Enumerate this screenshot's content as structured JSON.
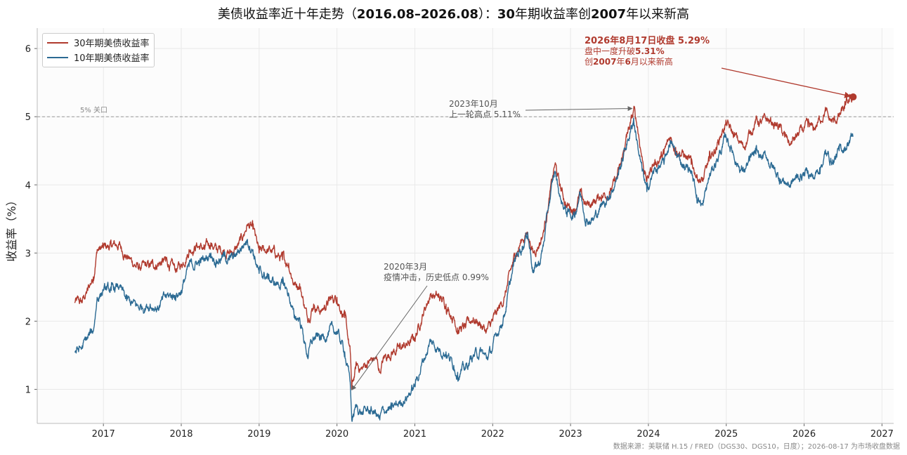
{
  "title": "美债收益率近十年走势（2016.08–2026.08）：30年期收益率创2007年以来新高",
  "source": "数据来源：美联储 H.15 / FRED（DGS30、DGS10，日度）；2026-08-17 为市场收盘数据",
  "colors": {
    "s30": "#b03a2e",
    "s10": "#2b6a93",
    "grid": "#e9e9e9",
    "axis": "#bbbbbb",
    "ref": "#9a9a9a",
    "ann_gray": "#666666",
    "ann_red": "#b03a2e"
  },
  "chart_data": {
    "type": "line",
    "ylabel": "收益率（%）",
    "xlabel": "",
    "xlim": [
      2016.15,
      2027.15
    ],
    "ylim": [
      0.5,
      6.3
    ],
    "xticks": [
      2017,
      2018,
      2019,
      2020,
      2021,
      2022,
      2023,
      2024,
      2025,
      2026,
      2027
    ],
    "yticks": [
      1,
      2,
      3,
      4,
      5,
      6
    ],
    "grid": true,
    "legend_position": "top-left",
    "reference_line": {
      "y": 5.0,
      "label": "5% 关口"
    },
    "series": [
      {
        "name": "30年期美债收益率",
        "points": [
          [
            2016.63,
            2.28
          ],
          [
            2016.72,
            2.27
          ],
          [
            2016.8,
            2.45
          ],
          [
            2016.87,
            2.65
          ],
          [
            2016.92,
            3.05
          ],
          [
            2017.0,
            3.07
          ],
          [
            2017.1,
            3.1
          ],
          [
            2017.2,
            3.12
          ],
          [
            2017.3,
            2.95
          ],
          [
            2017.45,
            2.78
          ],
          [
            2017.6,
            2.8
          ],
          [
            2017.7,
            2.85
          ],
          [
            2017.8,
            2.88
          ],
          [
            2017.92,
            2.75
          ],
          [
            2018.0,
            2.82
          ],
          [
            2018.1,
            3.05
          ],
          [
            2018.2,
            3.12
          ],
          [
            2018.3,
            3.05
          ],
          [
            2018.38,
            3.15
          ],
          [
            2018.45,
            3.05
          ],
          [
            2018.55,
            3.05
          ],
          [
            2018.62,
            3.0
          ],
          [
            2018.7,
            3.05
          ],
          [
            2018.78,
            3.2
          ],
          [
            2018.85,
            3.42
          ],
          [
            2018.92,
            3.35
          ],
          [
            2019.0,
            3.0
          ],
          [
            2019.1,
            3.05
          ],
          [
            2019.2,
            3.0
          ],
          [
            2019.3,
            2.9
          ],
          [
            2019.38,
            2.85
          ],
          [
            2019.45,
            2.55
          ],
          [
            2019.52,
            2.55
          ],
          [
            2019.62,
            2.05
          ],
          [
            2019.7,
            2.25
          ],
          [
            2019.8,
            2.15
          ],
          [
            2019.9,
            2.3
          ],
          [
            2020.0,
            2.35
          ],
          [
            2020.1,
            2.05
          ],
          [
            2020.17,
            1.55
          ],
          [
            2020.19,
            1.0
          ],
          [
            2020.25,
            1.35
          ],
          [
            2020.32,
            1.3
          ],
          [
            2020.4,
            1.4
          ],
          [
            2020.5,
            1.45
          ],
          [
            2020.55,
            1.25
          ],
          [
            2020.6,
            1.45
          ],
          [
            2020.7,
            1.55
          ],
          [
            2020.8,
            1.6
          ],
          [
            2020.9,
            1.65
          ],
          [
            2021.0,
            1.75
          ],
          [
            2021.1,
            2.1
          ],
          [
            2021.2,
            2.4
          ],
          [
            2021.3,
            2.35
          ],
          [
            2021.4,
            2.25
          ],
          [
            2021.5,
            2.05
          ],
          [
            2021.55,
            1.9
          ],
          [
            2021.65,
            1.9
          ],
          [
            2021.75,
            2.05
          ],
          [
            2021.85,
            1.95
          ],
          [
            2021.92,
            1.85
          ],
          [
            2022.0,
            2.0
          ],
          [
            2022.05,
            2.1
          ],
          [
            2022.15,
            2.35
          ],
          [
            2022.25,
            2.8
          ],
          [
            2022.3,
            3.0
          ],
          [
            2022.38,
            3.2
          ],
          [
            2022.45,
            3.3
          ],
          [
            2022.52,
            3.0
          ],
          [
            2022.6,
            3.15
          ],
          [
            2022.65,
            3.3
          ],
          [
            2022.72,
            3.75
          ],
          [
            2022.8,
            4.3
          ],
          [
            2022.87,
            3.95
          ],
          [
            2022.95,
            3.7
          ],
          [
            2023.05,
            3.65
          ],
          [
            2023.12,
            3.85
          ],
          [
            2023.2,
            3.7
          ],
          [
            2023.3,
            3.75
          ],
          [
            2023.4,
            3.85
          ],
          [
            2023.5,
            3.9
          ],
          [
            2023.58,
            4.05
          ],
          [
            2023.65,
            4.3
          ],
          [
            2023.72,
            4.7
          ],
          [
            2023.8,
            5.0
          ],
          [
            2023.81,
            5.11
          ],
          [
            2023.86,
            4.85
          ],
          [
            2023.92,
            4.4
          ],
          [
            2023.98,
            4.05
          ],
          [
            2024.05,
            4.3
          ],
          [
            2024.12,
            4.35
          ],
          [
            2024.2,
            4.45
          ],
          [
            2024.28,
            4.7
          ],
          [
            2024.35,
            4.55
          ],
          [
            2024.45,
            4.45
          ],
          [
            2024.55,
            4.3
          ],
          [
            2024.62,
            4.15
          ],
          [
            2024.7,
            4.05
          ],
          [
            2024.78,
            4.35
          ],
          [
            2024.87,
            4.55
          ],
          [
            2024.95,
            4.8
          ],
          [
            2025.0,
            4.9
          ],
          [
            2025.08,
            4.75
          ],
          [
            2025.15,
            4.65
          ],
          [
            2025.22,
            4.55
          ],
          [
            2025.3,
            4.75
          ],
          [
            2025.38,
            4.95
          ],
          [
            2025.45,
            4.9
          ],
          [
            2025.52,
            4.95
          ],
          [
            2025.6,
            4.9
          ],
          [
            2025.68,
            4.85
          ],
          [
            2025.75,
            4.7
          ],
          [
            2025.82,
            4.6
          ],
          [
            2025.9,
            4.7
          ],
          [
            2025.98,
            4.8
          ],
          [
            2026.05,
            4.85
          ],
          [
            2026.12,
            4.8
          ],
          [
            2026.2,
            4.95
          ],
          [
            2026.27,
            5.1
          ],
          [
            2026.32,
            4.95
          ],
          [
            2026.38,
            4.92
          ],
          [
            2026.45,
            5.0
          ],
          [
            2026.52,
            5.12
          ],
          [
            2026.58,
            5.22
          ],
          [
            2026.63,
            5.29
          ]
        ]
      },
      {
        "name": "10年期美债收益率",
        "points": [
          [
            2016.63,
            1.55
          ],
          [
            2016.72,
            1.6
          ],
          [
            2016.8,
            1.75
          ],
          [
            2016.87,
            1.85
          ],
          [
            2016.92,
            2.35
          ],
          [
            2017.0,
            2.45
          ],
          [
            2017.1,
            2.45
          ],
          [
            2017.2,
            2.5
          ],
          [
            2017.3,
            2.3
          ],
          [
            2017.45,
            2.2
          ],
          [
            2017.6,
            2.25
          ],
          [
            2017.7,
            2.2
          ],
          [
            2017.8,
            2.35
          ],
          [
            2017.92,
            2.38
          ],
          [
            2018.0,
            2.45
          ],
          [
            2018.1,
            2.8
          ],
          [
            2018.2,
            2.85
          ],
          [
            2018.3,
            2.9
          ],
          [
            2018.38,
            3.0
          ],
          [
            2018.45,
            2.9
          ],
          [
            2018.55,
            2.95
          ],
          [
            2018.62,
            2.9
          ],
          [
            2018.7,
            2.95
          ],
          [
            2018.78,
            3.1
          ],
          [
            2018.85,
            3.2
          ],
          [
            2018.92,
            3.05
          ],
          [
            2019.0,
            2.7
          ],
          [
            2019.1,
            2.65
          ],
          [
            2019.2,
            2.55
          ],
          [
            2019.3,
            2.55
          ],
          [
            2019.38,
            2.4
          ],
          [
            2019.45,
            2.05
          ],
          [
            2019.52,
            2.05
          ],
          [
            2019.62,
            1.5
          ],
          [
            2019.7,
            1.75
          ],
          [
            2019.8,
            1.75
          ],
          [
            2019.9,
            1.85
          ],
          [
            2020.0,
            1.85
          ],
          [
            2020.1,
            1.55
          ],
          [
            2020.17,
            1.1
          ],
          [
            2020.19,
            0.55
          ],
          [
            2020.25,
            0.75
          ],
          [
            2020.32,
            0.65
          ],
          [
            2020.4,
            0.7
          ],
          [
            2020.5,
            0.65
          ],
          [
            2020.55,
            0.55
          ],
          [
            2020.6,
            0.7
          ],
          [
            2020.7,
            0.7
          ],
          [
            2020.8,
            0.8
          ],
          [
            2020.9,
            0.9
          ],
          [
            2021.0,
            1.05
          ],
          [
            2021.1,
            1.4
          ],
          [
            2021.2,
            1.7
          ],
          [
            2021.3,
            1.6
          ],
          [
            2021.4,
            1.55
          ],
          [
            2021.5,
            1.35
          ],
          [
            2021.55,
            1.25
          ],
          [
            2021.65,
            1.3
          ],
          [
            2021.75,
            1.5
          ],
          [
            2021.85,
            1.55
          ],
          [
            2021.92,
            1.45
          ],
          [
            2022.0,
            1.6
          ],
          [
            2022.05,
            1.8
          ],
          [
            2022.15,
            2.1
          ],
          [
            2022.25,
            2.7
          ],
          [
            2022.3,
            2.95
          ],
          [
            2022.38,
            3.1
          ],
          [
            2022.45,
            3.3
          ],
          [
            2022.52,
            2.75
          ],
          [
            2022.6,
            2.85
          ],
          [
            2022.65,
            3.1
          ],
          [
            2022.72,
            3.7
          ],
          [
            2022.8,
            4.2
          ],
          [
            2022.87,
            3.8
          ],
          [
            2022.95,
            3.6
          ],
          [
            2023.05,
            3.55
          ],
          [
            2023.12,
            3.9
          ],
          [
            2023.2,
            3.5
          ],
          [
            2023.3,
            3.5
          ],
          [
            2023.4,
            3.7
          ],
          [
            2023.5,
            3.85
          ],
          [
            2023.58,
            4.05
          ],
          [
            2023.65,
            4.3
          ],
          [
            2023.72,
            4.6
          ],
          [
            2023.8,
            4.9
          ],
          [
            2023.81,
            4.98
          ],
          [
            2023.86,
            4.6
          ],
          [
            2023.92,
            4.2
          ],
          [
            2023.98,
            3.9
          ],
          [
            2024.05,
            4.15
          ],
          [
            2024.12,
            4.25
          ],
          [
            2024.2,
            4.3
          ],
          [
            2024.28,
            4.65
          ],
          [
            2024.35,
            4.45
          ],
          [
            2024.45,
            4.3
          ],
          [
            2024.55,
            4.2
          ],
          [
            2024.62,
            3.85
          ],
          [
            2024.7,
            3.7
          ],
          [
            2024.78,
            4.1
          ],
          [
            2024.87,
            4.35
          ],
          [
            2024.95,
            4.55
          ],
          [
            2025.0,
            4.7
          ],
          [
            2025.08,
            4.5
          ],
          [
            2025.15,
            4.3
          ],
          [
            2025.22,
            4.2
          ],
          [
            2025.3,
            4.35
          ],
          [
            2025.38,
            4.45
          ],
          [
            2025.45,
            4.4
          ],
          [
            2025.52,
            4.4
          ],
          [
            2025.6,
            4.25
          ],
          [
            2025.68,
            4.1
          ],
          [
            2025.75,
            4.05
          ],
          [
            2025.82,
            4.0
          ],
          [
            2025.9,
            4.1
          ],
          [
            2025.98,
            4.15
          ],
          [
            2026.05,
            4.2
          ],
          [
            2026.12,
            4.1
          ],
          [
            2026.2,
            4.25
          ],
          [
            2026.27,
            4.45
          ],
          [
            2026.32,
            4.4
          ],
          [
            2026.38,
            4.35
          ],
          [
            2026.45,
            4.5
          ],
          [
            2026.52,
            4.55
          ],
          [
            2026.58,
            4.65
          ],
          [
            2026.63,
            4.72
          ]
        ]
      }
    ],
    "highlight_point": {
      "x": 2026.63,
      "y": 5.29
    },
    "annotations": [
      {
        "id": "covid",
        "lines": [
          "2020年3月",
          "疫情冲击，历史低点 0.99%"
        ],
        "target": [
          2020.19,
          0.99
        ]
      },
      {
        "id": "peak2023",
        "lines": [
          "2023年10月",
          "上一轮高点 5.11%"
        ],
        "target": [
          2023.81,
          5.11
        ]
      },
      {
        "id": "latest",
        "lines": [
          "2026年8月17日收盘 5.29%",
          "盘中一度升破5.31%",
          "创2007年6月以来新高"
        ],
        "target": [
          2026.63,
          5.29
        ]
      }
    ]
  }
}
